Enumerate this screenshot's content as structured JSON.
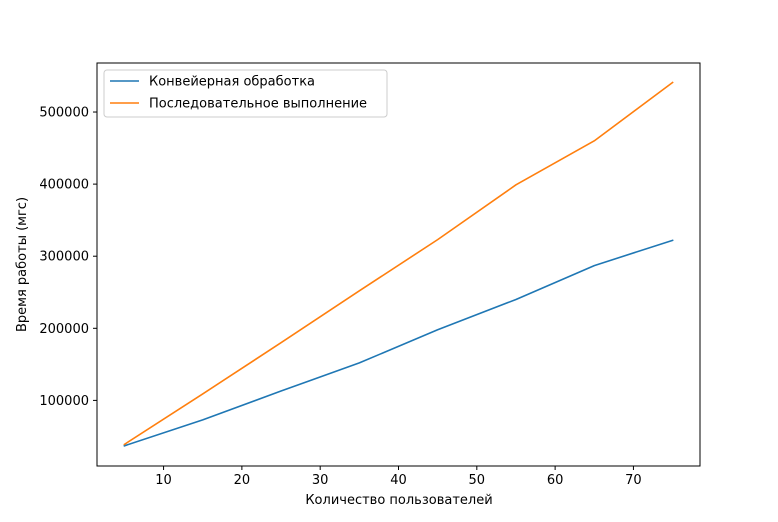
{
  "chart_data": {
    "type": "line",
    "title": "",
    "xlabel": "Количество пользователей",
    "ylabel": "Время работы (мгс)",
    "xlim": [
      1.5,
      78.5
    ],
    "ylim": [
      9000,
      568000
    ],
    "xticks": [
      10,
      20,
      30,
      40,
      50,
      60,
      70
    ],
    "yticks": [
      100000,
      200000,
      300000,
      400000,
      500000
    ],
    "grid": false,
    "legend": "upper-left",
    "x": [
      5,
      15,
      25,
      35,
      45,
      55,
      65,
      75
    ],
    "series": [
      {
        "name": "Конвейерная обработка",
        "color": "#1f77b4",
        "values": [
          37000,
          73000,
          113000,
          152000,
          198000,
          240000,
          287000,
          322000
        ]
      },
      {
        "name": "Последовательное выполнение",
        "color": "#ff7f0e",
        "values": [
          39000,
          109000,
          180000,
          252000,
          323000,
          399000,
          460000,
          541000
        ]
      }
    ]
  }
}
